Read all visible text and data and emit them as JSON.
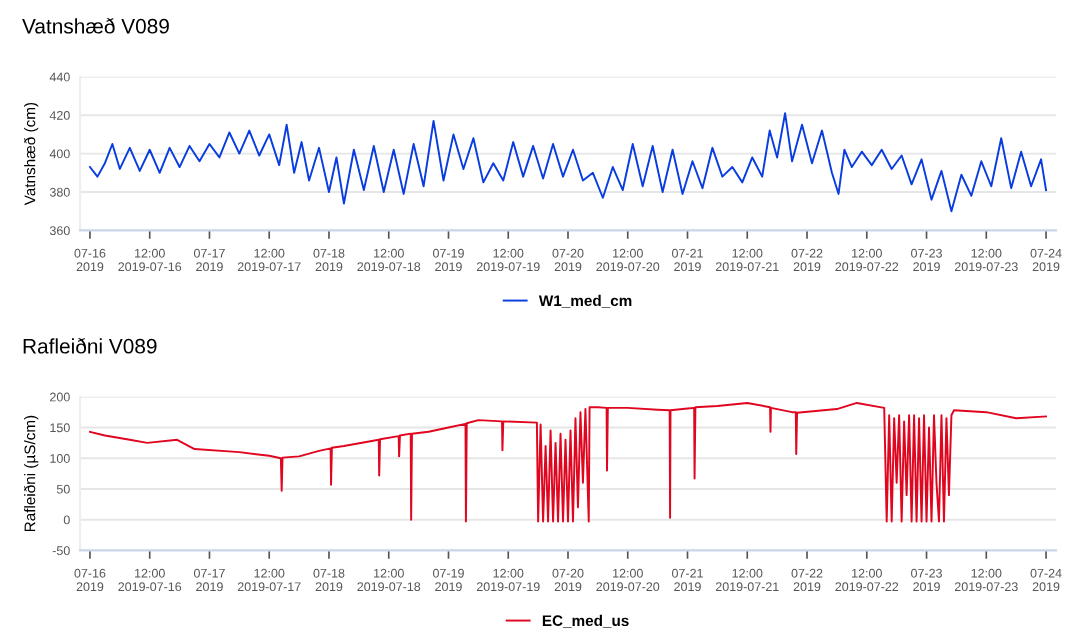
{
  "chart_data": [
    {
      "type": "line",
      "title": "Vatnshæð V089",
      "ylabel": "Vatnshæð (cm)",
      "ylim": [
        360,
        440
      ],
      "yticks": [
        360,
        380,
        400,
        420,
        440
      ],
      "grid": "y",
      "legend": "bottom",
      "marker": "none",
      "line_style": "solid",
      "xlim": [
        "2019-07-15T22:00",
        "2019-07-24T02:00"
      ],
      "xticks": [
        {
          "value": "2019-07-16T00:00",
          "label": "07-16\n2019"
        },
        {
          "value": "2019-07-16T12:00",
          "label": "12:00\n2019-07-16"
        },
        {
          "value": "2019-07-17T00:00",
          "label": "07-17\n2019"
        },
        {
          "value": "2019-07-17T12:00",
          "label": "12:00\n2019-07-17"
        },
        {
          "value": "2019-07-18T00:00",
          "label": "07-18\n2019"
        },
        {
          "value": "2019-07-18T12:00",
          "label": "12:00\n2019-07-18"
        },
        {
          "value": "2019-07-19T00:00",
          "label": "07-19\n2019"
        },
        {
          "value": "2019-07-19T12:00",
          "label": "12:00\n2019-07-19"
        },
        {
          "value": "2019-07-20T00:00",
          "label": "07-20\n2019"
        },
        {
          "value": "2019-07-20T12:00",
          "label": "12:00\n2019-07-20"
        },
        {
          "value": "2019-07-21T00:00",
          "label": "07-21\n2019"
        },
        {
          "value": "2019-07-21T12:00",
          "label": "12:00\n2019-07-21"
        },
        {
          "value": "2019-07-22T00:00",
          "label": "07-22\n2019"
        },
        {
          "value": "2019-07-22T12:00",
          "label": "12:00\n2019-07-22"
        },
        {
          "value": "2019-07-23T00:00",
          "label": "07-23\n2019"
        },
        {
          "value": "2019-07-23T12:00",
          "label": "12:00\n2019-07-23"
        },
        {
          "value": "2019-07-24T00:00",
          "label": "07-24\n2019"
        }
      ],
      "series": [
        {
          "name": "W1_med_cm",
          "color": "#0a3de0",
          "x": [
            "2019-07-16T00:00",
            "2019-07-16T01:30",
            "2019-07-16T03:00",
            "2019-07-16T04:30",
            "2019-07-16T06:00",
            "2019-07-16T08:00",
            "2019-07-16T10:00",
            "2019-07-16T12:00",
            "2019-07-16T14:00",
            "2019-07-16T16:00",
            "2019-07-16T18:00",
            "2019-07-16T20:00",
            "2019-07-16T22:00",
            "2019-07-17T00:00",
            "2019-07-17T02:00",
            "2019-07-17T04:00",
            "2019-07-17T06:00",
            "2019-07-17T08:00",
            "2019-07-17T10:00",
            "2019-07-17T12:00",
            "2019-07-17T14:00",
            "2019-07-17T15:30",
            "2019-07-17T17:00",
            "2019-07-17T18:30",
            "2019-07-17T20:00",
            "2019-07-17T22:00",
            "2019-07-18T00:00",
            "2019-07-18T01:30",
            "2019-07-18T03:00",
            "2019-07-18T05:00",
            "2019-07-18T07:00",
            "2019-07-18T09:00",
            "2019-07-18T11:00",
            "2019-07-18T13:00",
            "2019-07-18T15:00",
            "2019-07-18T17:00",
            "2019-07-18T19:00",
            "2019-07-18T21:00",
            "2019-07-18T23:00",
            "2019-07-19T01:00",
            "2019-07-19T03:00",
            "2019-07-19T05:00",
            "2019-07-19T07:00",
            "2019-07-19T09:00",
            "2019-07-19T11:00",
            "2019-07-19T13:00",
            "2019-07-19T15:00",
            "2019-07-19T17:00",
            "2019-07-19T19:00",
            "2019-07-19T21:00",
            "2019-07-19T23:00",
            "2019-07-20T01:00",
            "2019-07-20T03:00",
            "2019-07-20T05:00",
            "2019-07-20T07:00",
            "2019-07-20T09:00",
            "2019-07-20T11:00",
            "2019-07-20T13:00",
            "2019-07-20T15:00",
            "2019-07-20T17:00",
            "2019-07-20T19:00",
            "2019-07-20T21:00",
            "2019-07-20T23:00",
            "2019-07-21T01:00",
            "2019-07-21T03:00",
            "2019-07-21T05:00",
            "2019-07-21T07:00",
            "2019-07-21T09:00",
            "2019-07-21T11:00",
            "2019-07-21T13:00",
            "2019-07-21T15:00",
            "2019-07-21T16:30",
            "2019-07-21T18:00",
            "2019-07-21T19:36",
            "2019-07-21T21:00",
            "2019-07-21T23:00",
            "2019-07-22T01:00",
            "2019-07-22T03:00",
            "2019-07-22T05:00",
            "2019-07-22T06:20",
            "2019-07-22T07:30",
            "2019-07-22T09:00",
            "2019-07-22T11:00",
            "2019-07-22T13:00",
            "2019-07-22T15:00",
            "2019-07-22T17:00",
            "2019-07-22T19:00",
            "2019-07-22T21:00",
            "2019-07-22T23:00",
            "2019-07-23T01:00",
            "2019-07-23T03:00",
            "2019-07-23T05:00",
            "2019-07-23T07:00",
            "2019-07-23T09:00",
            "2019-07-23T11:00",
            "2019-07-23T13:00",
            "2019-07-23T15:00",
            "2019-07-23T17:00",
            "2019-07-23T19:00",
            "2019-07-23T21:00",
            "2019-07-23T23:00",
            "2019-07-24T00:00"
          ],
          "values": [
            393,
            388,
            395,
            405,
            392,
            403,
            391,
            402,
            390,
            403,
            393,
            404,
            396,
            405,
            398,
            411,
            400,
            412,
            399,
            410,
            394,
            415,
            390,
            406,
            386,
            403,
            380,
            398,
            374,
            402,
            381,
            404,
            380,
            402,
            379,
            405,
            383,
            417,
            386,
            410,
            392,
            408,
            385,
            395,
            386,
            406,
            388,
            404,
            387,
            405,
            388,
            402,
            386,
            390,
            377,
            393,
            381,
            405,
            383,
            404,
            380,
            402,
            379,
            396,
            382,
            403,
            388,
            393,
            385,
            398,
            388,
            412,
            398,
            421,
            396,
            415,
            395,
            412,
            390,
            379,
            402,
            393,
            401,
            394,
            402,
            392,
            399,
            384,
            397,
            376,
            391,
            370,
            389,
            378,
            396,
            383,
            408,
            382,
            401,
            383,
            397,
            381
          ]
        }
      ]
    },
    {
      "type": "line",
      "title": "Rafleiðni V089",
      "ylabel": "Rafleiðni (µS/cm)",
      "ylim": [
        -50,
        200
      ],
      "yticks": [
        -50,
        0,
        50,
        100,
        150,
        200
      ],
      "grid": "y",
      "legend": "bottom",
      "marker": "none",
      "line_style": "solid",
      "xlim": [
        "2019-07-15T22:00",
        "2019-07-24T02:00"
      ],
      "xticks": [
        {
          "value": "2019-07-16T00:00",
          "label": "07-16\n2019"
        },
        {
          "value": "2019-07-16T12:00",
          "label": "12:00\n2019-07-16"
        },
        {
          "value": "2019-07-17T00:00",
          "label": "07-17\n2019"
        },
        {
          "value": "2019-07-17T12:00",
          "label": "12:00\n2019-07-17"
        },
        {
          "value": "2019-07-18T00:00",
          "label": "07-18\n2019"
        },
        {
          "value": "2019-07-18T12:00",
          "label": "12:00\n2019-07-18"
        },
        {
          "value": "2019-07-19T00:00",
          "label": "07-19\n2019"
        },
        {
          "value": "2019-07-19T12:00",
          "label": "12:00\n2019-07-19"
        },
        {
          "value": "2019-07-20T00:00",
          "label": "07-20\n2019"
        },
        {
          "value": "2019-07-20T12:00",
          "label": "12:00\n2019-07-20"
        },
        {
          "value": "2019-07-21T00:00",
          "label": "07-21\n2019"
        },
        {
          "value": "2019-07-21T12:00",
          "label": "12:00\n2019-07-21"
        },
        {
          "value": "2019-07-22T00:00",
          "label": "07-22\n2019"
        },
        {
          "value": "2019-07-22T12:00",
          "label": "12:00\n2019-07-22"
        },
        {
          "value": "2019-07-23T00:00",
          "label": "07-23\n2019"
        },
        {
          "value": "2019-07-23T12:00",
          "label": "12:00\n2019-07-23"
        },
        {
          "value": "2019-07-24T00:00",
          "label": "07-24\n2019"
        }
      ],
      "series": [
        {
          "name": "EC_med_us",
          "color": "#e0061f",
          "x": [
            "2019-07-16T00:00",
            "2019-07-16T03:00",
            "2019-07-16T08:00",
            "2019-07-16T11:30",
            "2019-07-16T17:30",
            "2019-07-16T21:00",
            "2019-07-17T06:00",
            "2019-07-17T12:00",
            "2019-07-17T14:20",
            "2019-07-17T14:30",
            "2019-07-17T14:40",
            "2019-07-17T18:00",
            "2019-07-17T22:00",
            "2019-07-18T00:20",
            "2019-07-18T00:25",
            "2019-07-18T00:35",
            "2019-07-18T03:00",
            "2019-07-18T10:00",
            "2019-07-18T10:05",
            "2019-07-18T10:15",
            "2019-07-18T14:00",
            "2019-07-18T14:05",
            "2019-07-18T14:15",
            "2019-07-18T16:25",
            "2019-07-18T16:30",
            "2019-07-18T16:40",
            "2019-07-18T20:00",
            "2019-07-19T00:00",
            "2019-07-19T03:25",
            "2019-07-19T03:30",
            "2019-07-19T03:40",
            "2019-07-19T06:00",
            "2019-07-19T10:45",
            "2019-07-19T10:50",
            "2019-07-19T11:00",
            "2019-07-19T17:45",
            "2019-07-19T18:00",
            "2019-07-19T18:30",
            "2019-07-19T19:00",
            "2019-07-19T19:30",
            "2019-07-19T20:00",
            "2019-07-19T20:30",
            "2019-07-19T21:00",
            "2019-07-19T21:30",
            "2019-07-19T22:00",
            "2019-07-19T22:30",
            "2019-07-19T23:00",
            "2019-07-19T23:30",
            "2019-07-20T00:00",
            "2019-07-20T00:30",
            "2019-07-20T01:00",
            "2019-07-20T01:30",
            "2019-07-20T02:00",
            "2019-07-20T02:30",
            "2019-07-20T03:00",
            "2019-07-20T03:30",
            "2019-07-20T04:10",
            "2019-07-20T04:20",
            "2019-07-20T06:00",
            "2019-07-20T07:45",
            "2019-07-20T07:50",
            "2019-07-20T08:00",
            "2019-07-20T12:00",
            "2019-07-20T18:00",
            "2019-07-20T20:25",
            "2019-07-20T20:30",
            "2019-07-20T20:35",
            "2019-07-21T00:00",
            "2019-07-21T01:20",
            "2019-07-21T01:25",
            "2019-07-21T01:35",
            "2019-07-21T06:00",
            "2019-07-21T12:00",
            "2019-07-21T16:35",
            "2019-07-21T16:40",
            "2019-07-21T16:45",
            "2019-07-21T21:00",
            "2019-07-21T21:45",
            "2019-07-21T21:50",
            "2019-07-21T22:00",
            "2019-07-22T06:00",
            "2019-07-22T10:00",
            "2019-07-22T15:30",
            "2019-07-22T16:00",
            "2019-07-22T16:30",
            "2019-07-22T17:00",
            "2019-07-22T17:30",
            "2019-07-22T18:00",
            "2019-07-22T18:30",
            "2019-07-22T19:00",
            "2019-07-22T19:30",
            "2019-07-22T20:00",
            "2019-07-22T20:30",
            "2019-07-22T21:00",
            "2019-07-22T21:30",
            "2019-07-22T22:00",
            "2019-07-22T22:30",
            "2019-07-22T23:00",
            "2019-07-22T23:30",
            "2019-07-23T00:00",
            "2019-07-23T00:30",
            "2019-07-23T01:00",
            "2019-07-23T01:30",
            "2019-07-23T02:00",
            "2019-07-23T02:30",
            "2019-07-23T03:00",
            "2019-07-23T03:30",
            "2019-07-23T04:00",
            "2019-07-23T04:30",
            "2019-07-23T05:00",
            "2019-07-23T05:30",
            "2019-07-23T12:00",
            "2019-07-23T18:00",
            "2019-07-24T00:00"
          ],
          "values": [
            143,
            137,
            130,
            125,
            130,
            115,
            110,
            104,
            100,
            47,
            101,
            103,
            112,
            116,
            57,
            117,
            120,
            130,
            72,
            131,
            136,
            103,
            137,
            140,
            0,
            140,
            143,
            150,
            156,
            -3,
            157,
            162,
            160,
            113,
            160,
            158,
            -3,
            155,
            -3,
            120,
            -3,
            145,
            -3,
            125,
            -3,
            140,
            -3,
            130,
            -3,
            145,
            -3,
            165,
            20,
            175,
            60,
            180,
            -3,
            183,
            183,
            182,
            80,
            182,
            182,
            179,
            178,
            3,
            178,
            181,
            182,
            67,
            183,
            185,
            190,
            183,
            143,
            182,
            175,
            175,
            107,
            174,
            180,
            190,
            182,
            -3,
            170,
            -3,
            165,
            60,
            170,
            -3,
            160,
            40,
            170,
            -3,
            170,
            -3,
            165,
            -3,
            170,
            -3,
            150,
            -3,
            170,
            60,
            -3,
            170,
            -3,
            165,
            40,
            170,
            178,
            175,
            165,
            168
          ]
        }
      ]
    }
  ]
}
